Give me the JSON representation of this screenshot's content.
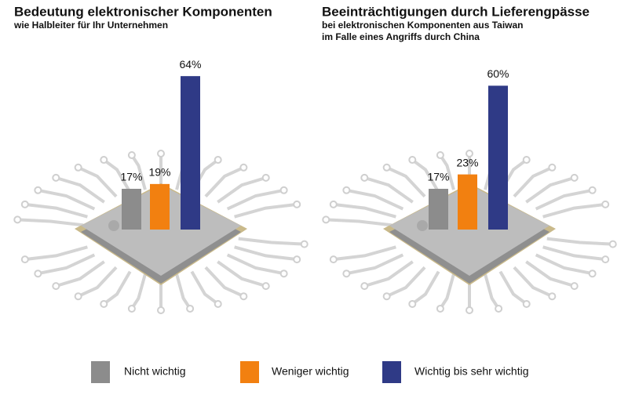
{
  "chart_data": [
    {
      "type": "bar",
      "title": "Bedeutung elektronischer Komponenten",
      "subtitle": [
        "wie Halbleiter für Ihr Unternehmen"
      ],
      "values": [
        17,
        19,
        64
      ],
      "value_labels": [
        "17%",
        "19%",
        "64%"
      ]
    },
    {
      "type": "bar",
      "title": "Beeinträchtigungen durch Lieferengpässe",
      "subtitle": [
        "bei elektronischen Komponenten aus Taiwan",
        "im Falle eines Angriffs durch China"
      ],
      "values": [
        17,
        23,
        60
      ],
      "value_labels": [
        "17%",
        "23%",
        "60%"
      ]
    }
  ],
  "legend": [
    {
      "name": "Nicht wichtig",
      "color": "#8c8c8c"
    },
    {
      "name": "Weniger wichtig",
      "color": "#f28010"
    },
    {
      "name": "Wichtig bis sehr wichtig",
      "color": "#2f3a86"
    }
  ]
}
